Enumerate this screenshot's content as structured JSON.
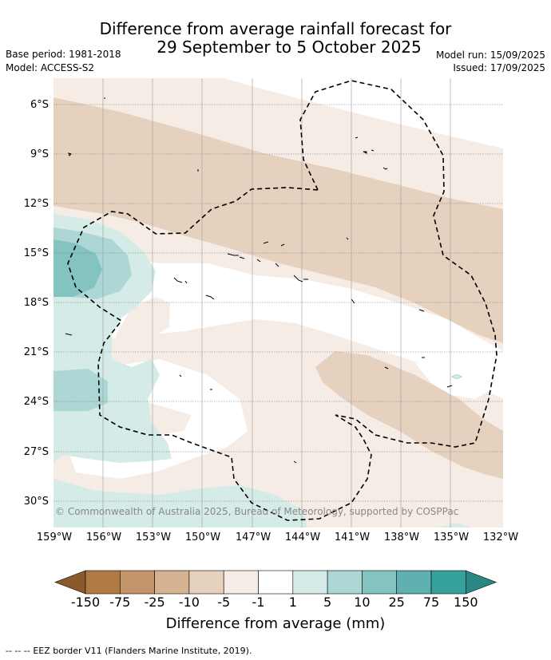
{
  "title": {
    "line1": "Difference from average rainfall forecast for",
    "line2": "29 September to 5 October 2025"
  },
  "meta": {
    "base_period": "Base period: 1981-2018",
    "model": "Model: ACCESS-S2",
    "model_run": "Model run: 15/09/2025",
    "issued": "Issued: 17/09/2025"
  },
  "map": {
    "lat_labels": [
      "6°S",
      "9°S",
      "12°S",
      "15°S",
      "18°S",
      "21°S",
      "24°S",
      "27°S",
      "30°S"
    ],
    "lon_labels": [
      "159°W",
      "156°W",
      "153°W",
      "150°W",
      "147°W",
      "144°W",
      "141°W",
      "138°W",
      "135°W",
      "132°W"
    ],
    "copyright": "© Commonwealth of Australia 2025, Bureau of Meteorology, supported by COSPPac"
  },
  "colorbar": {
    "labels": [
      "-150",
      "-75",
      "-25",
      "-10",
      "-5",
      "-1",
      "1",
      "5",
      "10",
      "25",
      "75",
      "150"
    ],
    "colors": [
      "#8a5a2b",
      "#b07a45",
      "#c4956b",
      "#d5b292",
      "#e6d1be",
      "#f5ece6",
      "#ffffff",
      "#d5ebe8",
      "#acd7d4",
      "#83c4c1",
      "#5eb1ae",
      "#35a09c",
      "#2a8783"
    ],
    "title": "Difference from average (mm)"
  },
  "legend": {
    "symbol": "--  --  --",
    "text": "EEZ border V11 (Flanders Marine Institute, 2019)."
  }
}
